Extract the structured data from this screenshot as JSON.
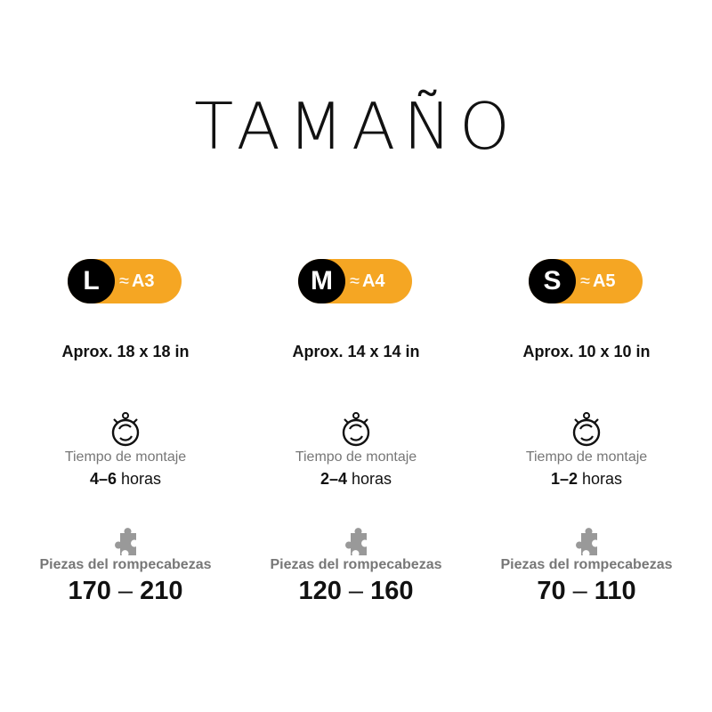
{
  "title": "TAMAÑO",
  "colors": {
    "badge_accent": "#f5a623",
    "badge_size": "#000000",
    "label_gray": "#777777",
    "puzzle_icon": "#999999"
  },
  "sizes": [
    {
      "size": "L",
      "approx_symbol": "≈",
      "paper": "A3",
      "dimensions": "Aprox. 18 x 18 in",
      "time_label": "Tiempo de montaje",
      "time_range": "4–6",
      "time_unit": "horas",
      "pieces_label": "Piezas del rompecabezas",
      "pieces_min": "170",
      "pieces_sep": "–",
      "pieces_max": "210"
    },
    {
      "size": "M",
      "approx_symbol": "≈",
      "paper": "A4",
      "dimensions": "Aprox. 14 x 14 in",
      "time_label": "Tiempo de montaje",
      "time_range": "2–4",
      "time_unit": "horas",
      "pieces_label": "Piezas del rompecabezas",
      "pieces_min": "120",
      "pieces_sep": "–",
      "pieces_max": "160"
    },
    {
      "size": "S",
      "approx_symbol": "≈",
      "paper": "A5",
      "dimensions": "Aprox. 10 x 10 in",
      "time_label": "Tiempo de montaje",
      "time_range": "1–2",
      "time_unit": "horas",
      "pieces_label": "Piezas del rompecabezas",
      "pieces_min": "70",
      "pieces_sep": "–",
      "pieces_max": "110"
    }
  ],
  "icons": {
    "time": "stopwatch-icon",
    "pieces": "puzzle-piece-icon"
  }
}
